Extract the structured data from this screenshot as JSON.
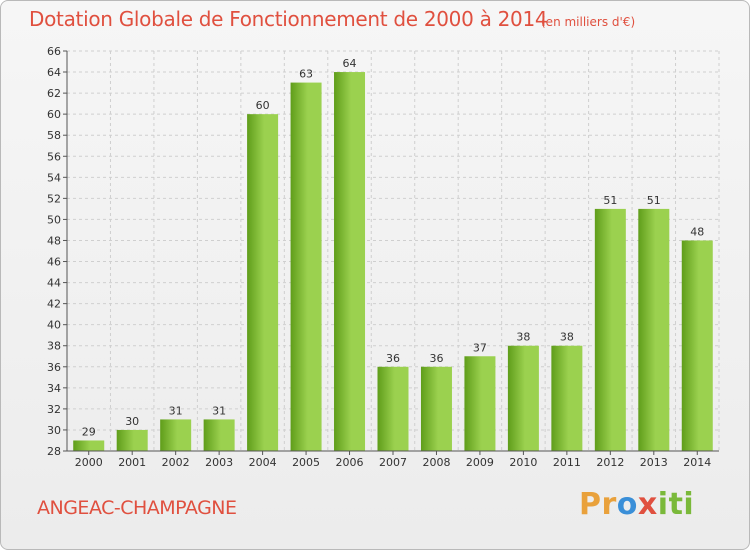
{
  "header": {
    "title": "Dotation Globale de Fonctionnement de 2000 à 2014",
    "subtitle": "(en milliers d'€)"
  },
  "footer": {
    "commune": "ANGEAC-CHAMPAGNE",
    "brand_parts": [
      "Pr",
      "o",
      "x",
      "iti"
    ]
  },
  "colors": {
    "accent": "#e0503f",
    "bar_light": "#9bd14f",
    "bar_dark": "#5f9d1a",
    "grid": "#cfcfcf"
  },
  "chart_data": {
    "type": "bar",
    "title": "Dotation Globale de Fonctionnement de 2000 à 2014",
    "xlabel": "",
    "ylabel": "en milliers d'€",
    "categories": [
      "2000",
      "2001",
      "2002",
      "2003",
      "2004",
      "2005",
      "2006",
      "2007",
      "2008",
      "2009",
      "2010",
      "2011",
      "2012",
      "2013",
      "2014"
    ],
    "values": [
      29,
      30,
      31,
      31,
      60,
      63,
      64,
      36,
      36,
      37,
      38,
      38,
      51,
      51,
      48
    ],
    "ylim": [
      28,
      66
    ],
    "ytick_step": 2,
    "grid": true
  }
}
